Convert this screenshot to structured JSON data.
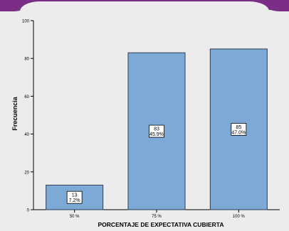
{
  "chart_data": {
    "type": "bar",
    "categories": [
      "50 %",
      "75 %",
      "100 %"
    ],
    "values": [
      13,
      83,
      85
    ],
    "data_labels": [
      {
        "count": "13",
        "percent": "7.2%"
      },
      {
        "count": "83",
        "percent": "45.9%"
      },
      {
        "count": "85",
        "percent": "47.0%"
      }
    ],
    "xlabel": "PORCENTAJE DE EXPECTATIVA CUBIERTA",
    "ylabel": "Frecuencia",
    "ylim": [
      0,
      100
    ],
    "yticks": [
      0,
      20,
      40,
      60,
      80,
      100
    ],
    "grid": false,
    "legend": "none",
    "colors": {
      "bar_fill": "#7da9d6",
      "bar_stroke": "#2b3d55",
      "plot_background": "#ececec",
      "accent": "#7a2e86"
    }
  }
}
